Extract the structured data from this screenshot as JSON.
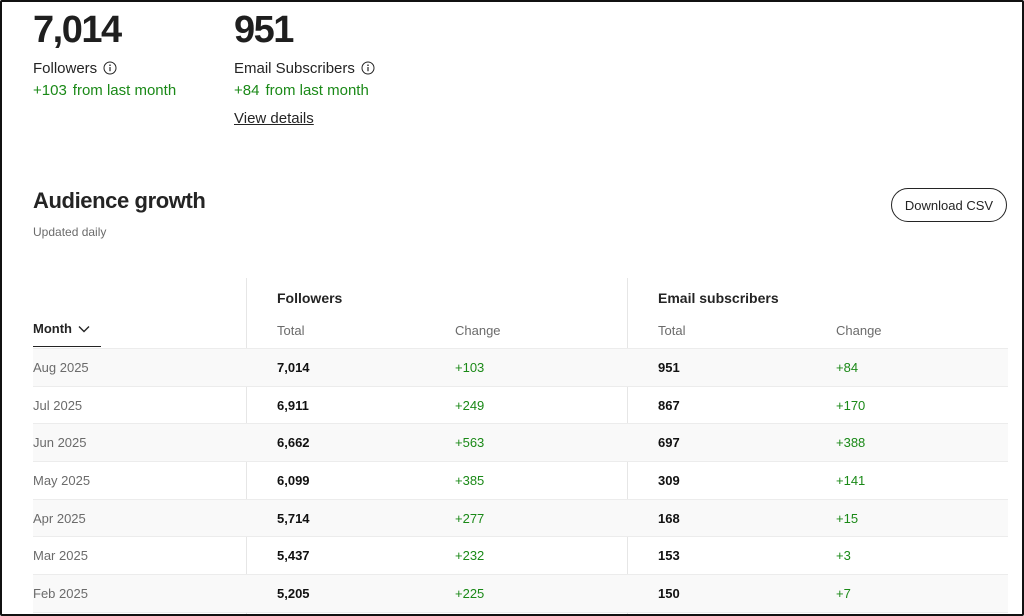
{
  "stats": {
    "followers": {
      "value": "7,014",
      "label": "Followers",
      "change_value": "+103",
      "change_text": "from last month"
    },
    "subscribers": {
      "value": "951",
      "label": "Email Subscribers",
      "change_value": "+84",
      "change_text": "from last month"
    },
    "view_details": "View details"
  },
  "audience": {
    "title": "Audience growth",
    "subtitle": "Updated daily",
    "download_label": "Download CSV"
  },
  "table": {
    "month_header": "Month",
    "followers_group": "Followers",
    "subscribers_group": "Email subscribers",
    "total_header": "Total",
    "change_header": "Change",
    "rows": [
      {
        "month": "Aug 2025",
        "followers_total": "7,014",
        "followers_change": "+103",
        "subs_total": "951",
        "subs_change": "+84"
      },
      {
        "month": "Jul 2025",
        "followers_total": "6,911",
        "followers_change": "+249",
        "subs_total": "867",
        "subs_change": "+170"
      },
      {
        "month": "Jun 2025",
        "followers_total": "6,662",
        "followers_change": "+563",
        "subs_total": "697",
        "subs_change": "+388"
      },
      {
        "month": "May 2025",
        "followers_total": "6,099",
        "followers_change": "+385",
        "subs_total": "309",
        "subs_change": "+141"
      },
      {
        "month": "Apr 2025",
        "followers_total": "5,714",
        "followers_change": "+277",
        "subs_total": "168",
        "subs_change": "+15"
      },
      {
        "month": "Mar 2025",
        "followers_total": "5,437",
        "followers_change": "+232",
        "subs_total": "153",
        "subs_change": "+3"
      },
      {
        "month": "Feb 2025",
        "followers_total": "5,205",
        "followers_change": "+225",
        "subs_total": "150",
        "subs_change": "+7"
      }
    ]
  },
  "colors": {
    "positive": "#1a8917",
    "text": "#242424",
    "muted": "#6b6b6b"
  },
  "icons": {
    "info": "info-circle-icon",
    "sort": "chevron-down-icon"
  }
}
